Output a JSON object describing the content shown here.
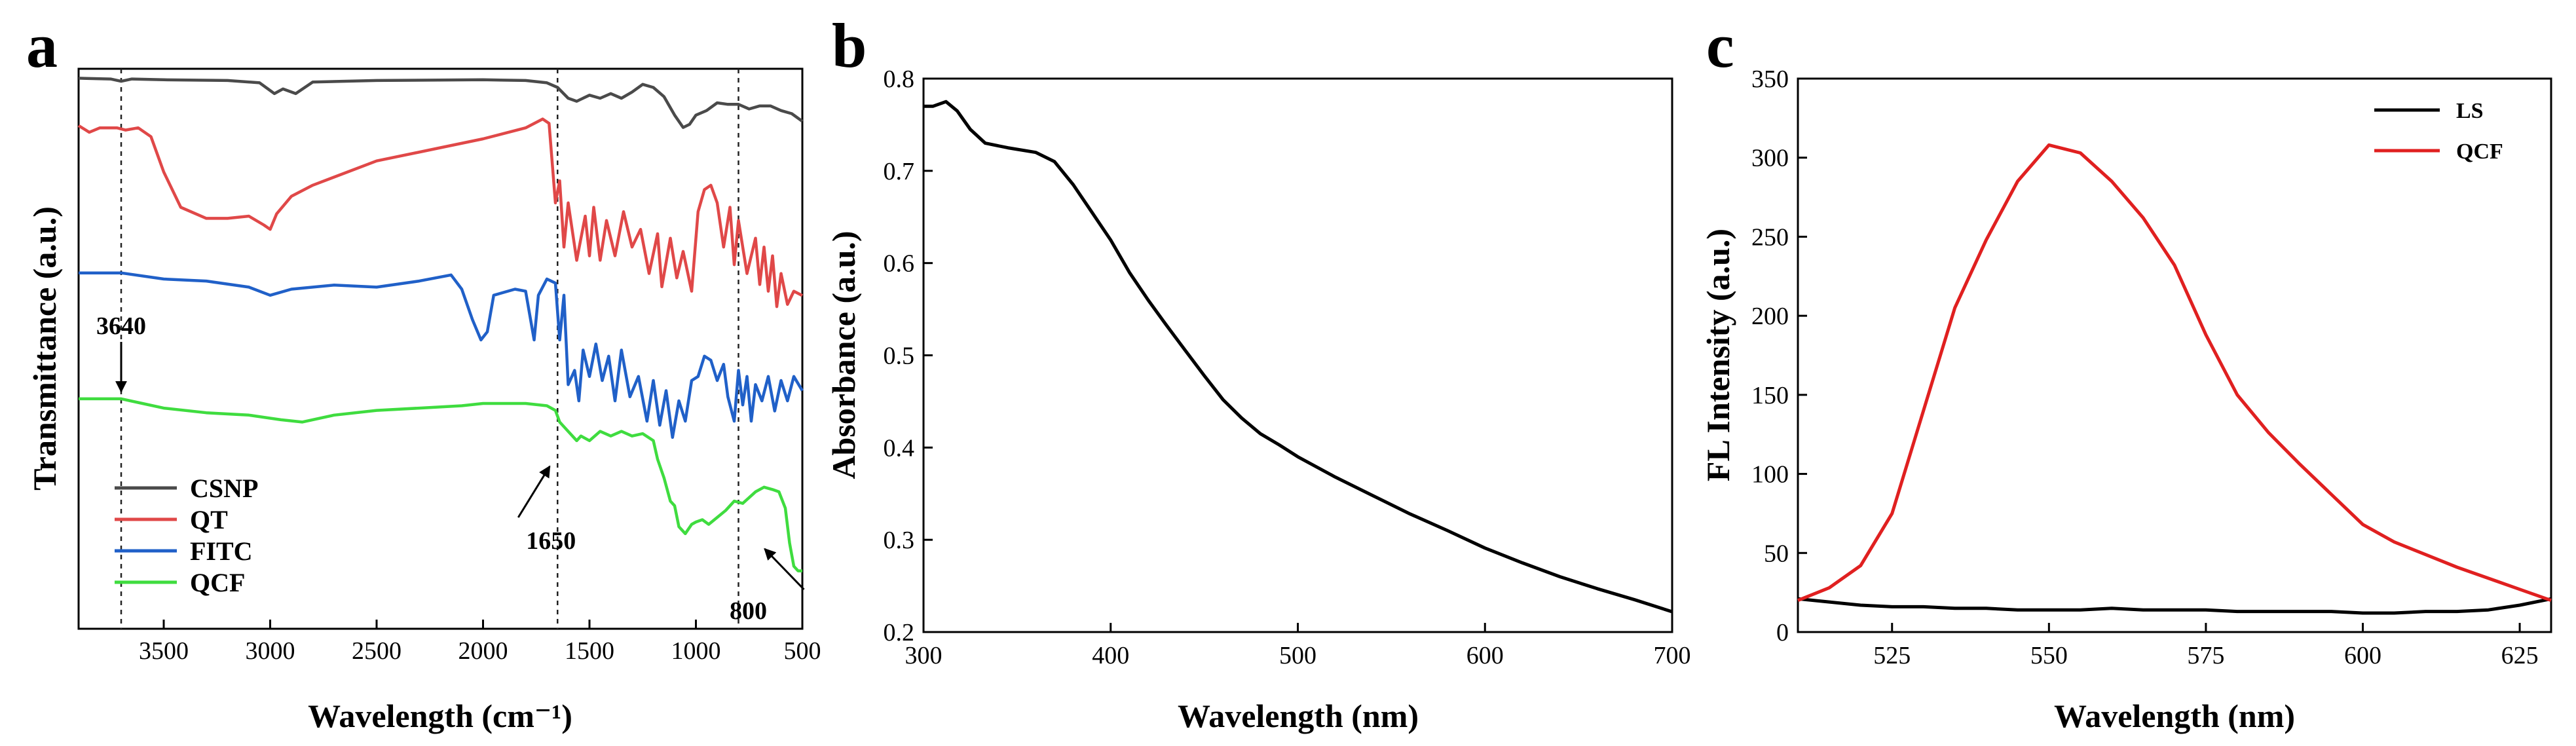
{
  "chart_data": [
    {
      "panel": "a",
      "type": "line",
      "xlabel": "Wavelength (cm⁻¹)",
      "ylabel": "Transmittance (a.u.)",
      "xlim": [
        3900,
        500
      ],
      "x_ticks": [
        3500,
        3000,
        2500,
        2000,
        1500,
        1000,
        500
      ],
      "y_ticks": [],
      "series": [
        {
          "name": "CSNP",
          "color": "#4a4a4a",
          "points": [
            [
              3900,
              0.96
            ],
            [
              3750,
              0.955
            ],
            [
              3700,
              0.94
            ],
            [
              3650,
              0.955
            ],
            [
              3500,
              0.95
            ],
            [
              3200,
              0.945
            ],
            [
              3050,
              0.93
            ],
            [
              2980,
              0.86
            ],
            [
              2940,
              0.89
            ],
            [
              2880,
              0.86
            ],
            [
              2800,
              0.935
            ],
            [
              2500,
              0.945
            ],
            [
              2000,
              0.95
            ],
            [
              1800,
              0.945
            ],
            [
              1700,
              0.93
            ],
            [
              1650,
              0.9
            ],
            [
              1600,
              0.83
            ],
            [
              1560,
              0.81
            ],
            [
              1500,
              0.85
            ],
            [
              1450,
              0.83
            ],
            [
              1400,
              0.86
            ],
            [
              1350,
              0.83
            ],
            [
              1300,
              0.87
            ],
            [
              1250,
              0.92
            ],
            [
              1200,
              0.9
            ],
            [
              1150,
              0.84
            ],
            [
              1100,
              0.72
            ],
            [
              1060,
              0.64
            ],
            [
              1030,
              0.66
            ],
            [
              1000,
              0.72
            ],
            [
              950,
              0.75
            ],
            [
              900,
              0.8
            ],
            [
              850,
              0.79
            ],
            [
              800,
              0.79
            ],
            [
              750,
              0.76
            ],
            [
              700,
              0.78
            ],
            [
              650,
              0.78
            ],
            [
              600,
              0.75
            ],
            [
              550,
              0.73
            ],
            [
              500,
              0.68
            ]
          ]
        },
        {
          "name": "QT",
          "color": "#e04848",
          "points": [
            [
              3900,
              0.87
            ],
            [
              3850,
              0.84
            ],
            [
              3800,
              0.86
            ],
            [
              3720,
              0.86
            ],
            [
              3680,
              0.85
            ],
            [
              3620,
              0.86
            ],
            [
              3560,
              0.82
            ],
            [
              3500,
              0.66
            ],
            [
              3420,
              0.5
            ],
            [
              3300,
              0.45
            ],
            [
              3200,
              0.45
            ],
            [
              3100,
              0.46
            ],
            [
              3030,
              0.42
            ],
            [
              3000,
              0.4
            ],
            [
              2970,
              0.47
            ],
            [
              2900,
              0.55
            ],
            [
              2800,
              0.6
            ],
            [
              2500,
              0.71
            ],
            [
              2200,
              0.77
            ],
            [
              2000,
              0.81
            ],
            [
              1800,
              0.86
            ],
            [
              1720,
              0.9
            ],
            [
              1690,
              0.88
            ],
            [
              1660,
              0.52
            ],
            [
              1640,
              0.62
            ],
            [
              1620,
              0.32
            ],
            [
              1600,
              0.52
            ],
            [
              1560,
              0.26
            ],
            [
              1520,
              0.46
            ],
            [
              1500,
              0.28
            ],
            [
              1480,
              0.5
            ],
            [
              1450,
              0.26
            ],
            [
              1420,
              0.44
            ],
            [
              1380,
              0.28
            ],
            [
              1340,
              0.48
            ],
            [
              1300,
              0.32
            ],
            [
              1260,
              0.4
            ],
            [
              1220,
              0.2
            ],
            [
              1180,
              0.38
            ],
            [
              1160,
              0.14
            ],
            [
              1120,
              0.36
            ],
            [
              1090,
              0.18
            ],
            [
              1060,
              0.3
            ],
            [
              1020,
              0.12
            ],
            [
              990,
              0.48
            ],
            [
              960,
              0.58
            ],
            [
              930,
              0.6
            ],
            [
              900,
              0.52
            ],
            [
              870,
              0.32
            ],
            [
              840,
              0.5
            ],
            [
              820,
              0.24
            ],
            [
              800,
              0.44
            ],
            [
              780,
              0.32
            ],
            [
              760,
              0.2
            ],
            [
              720,
              0.36
            ],
            [
              700,
              0.15
            ],
            [
              680,
              0.32
            ],
            [
              660,
              0.12
            ],
            [
              640,
              0.28
            ],
            [
              620,
              0.05
            ],
            [
              600,
              0.2
            ],
            [
              570,
              0.06
            ],
            [
              540,
              0.12
            ],
            [
              500,
              0.1
            ]
          ]
        },
        {
          "name": "FITC",
          "color": "#2060c8",
          "points": [
            [
              3900,
              0.93
            ],
            [
              3700,
              0.93
            ],
            [
              3500,
              0.9
            ],
            [
              3300,
              0.89
            ],
            [
              3100,
              0.86
            ],
            [
              3000,
              0.82
            ],
            [
              2900,
              0.85
            ],
            [
              2700,
              0.87
            ],
            [
              2500,
              0.86
            ],
            [
              2300,
              0.89
            ],
            [
              2150,
              0.92
            ],
            [
              2100,
              0.85
            ],
            [
              2050,
              0.7
            ],
            [
              2010,
              0.6
            ],
            [
              1980,
              0.64
            ],
            [
              1950,
              0.82
            ],
            [
              1850,
              0.85
            ],
            [
              1800,
              0.84
            ],
            [
              1760,
              0.6
            ],
            [
              1740,
              0.82
            ],
            [
              1700,
              0.9
            ],
            [
              1660,
              0.88
            ],
            [
              1640,
              0.6
            ],
            [
              1620,
              0.82
            ],
            [
              1600,
              0.38
            ],
            [
              1570,
              0.45
            ],
            [
              1550,
              0.3
            ],
            [
              1530,
              0.55
            ],
            [
              1500,
              0.42
            ],
            [
              1470,
              0.58
            ],
            [
              1440,
              0.4
            ],
            [
              1410,
              0.52
            ],
            [
              1380,
              0.3
            ],
            [
              1350,
              0.55
            ],
            [
              1310,
              0.32
            ],
            [
              1270,
              0.42
            ],
            [
              1230,
              0.2
            ],
            [
              1200,
              0.4
            ],
            [
              1170,
              0.18
            ],
            [
              1140,
              0.35
            ],
            [
              1110,
              0.12
            ],
            [
              1080,
              0.3
            ],
            [
              1050,
              0.2
            ],
            [
              1020,
              0.4
            ],
            [
              990,
              0.42
            ],
            [
              960,
              0.52
            ],
            [
              930,
              0.5
            ],
            [
              900,
              0.4
            ],
            [
              870,
              0.48
            ],
            [
              850,
              0.32
            ],
            [
              820,
              0.2
            ],
            [
              800,
              0.45
            ],
            [
              780,
              0.28
            ],
            [
              760,
              0.42
            ],
            [
              740,
              0.2
            ],
            [
              720,
              0.38
            ],
            [
              690,
              0.3
            ],
            [
              660,
              0.42
            ],
            [
              630,
              0.25
            ],
            [
              600,
              0.4
            ],
            [
              570,
              0.3
            ],
            [
              540,
              0.42
            ],
            [
              500,
              0.35
            ]
          ]
        },
        {
          "name": "QCF",
          "color": "#3fdc3f",
          "points": [
            [
              3900,
              0.82
            ],
            [
              3700,
              0.82
            ],
            [
              3600,
              0.8
            ],
            [
              3500,
              0.78
            ],
            [
              3300,
              0.76
            ],
            [
              3100,
              0.75
            ],
            [
              2950,
              0.73
            ],
            [
              2850,
              0.72
            ],
            [
              2700,
              0.75
            ],
            [
              2500,
              0.77
            ],
            [
              2300,
              0.78
            ],
            [
              2100,
              0.79
            ],
            [
              2000,
              0.8
            ],
            [
              1800,
              0.8
            ],
            [
              1700,
              0.79
            ],
            [
              1660,
              0.77
            ],
            [
              1640,
              0.72
            ],
            [
              1600,
              0.68
            ],
            [
              1560,
              0.64
            ],
            [
              1540,
              0.66
            ],
            [
              1500,
              0.64
            ],
            [
              1450,
              0.68
            ],
            [
              1400,
              0.66
            ],
            [
              1350,
              0.68
            ],
            [
              1300,
              0.66
            ],
            [
              1250,
              0.67
            ],
            [
              1200,
              0.64
            ],
            [
              1180,
              0.56
            ],
            [
              1150,
              0.48
            ],
            [
              1120,
              0.38
            ],
            [
              1100,
              0.36
            ],
            [
              1080,
              0.27
            ],
            [
              1050,
              0.24
            ],
            [
              1020,
              0.28
            ],
            [
              1000,
              0.29
            ],
            [
              970,
              0.3
            ],
            [
              940,
              0.28
            ],
            [
              900,
              0.31
            ],
            [
              860,
              0.34
            ],
            [
              820,
              0.38
            ],
            [
              780,
              0.37
            ],
            [
              720,
              0.42
            ],
            [
              680,
              0.44
            ],
            [
              640,
              0.43
            ],
            [
              610,
              0.42
            ],
            [
              580,
              0.35
            ],
            [
              560,
              0.2
            ],
            [
              540,
              0.1
            ],
            [
              520,
              0.08
            ],
            [
              500,
              0.08
            ]
          ]
        }
      ],
      "annotations": [
        {
          "text": "3640",
          "x": 3700
        },
        {
          "text": "1650",
          "x": 1650
        },
        {
          "text": "800",
          "x": 800
        }
      ],
      "legend_position": "bottom-left",
      "grid": false
    },
    {
      "panel": "b",
      "type": "line",
      "xlabel": "Wavelength (nm)",
      "ylabel": "Absorbance (a.u.)",
      "xlim": [
        300,
        700
      ],
      "ylim": [
        0.2,
        0.8
      ],
      "x_ticks": [
        300,
        400,
        500,
        600,
        700
      ],
      "y_ticks": [
        0.2,
        0.3,
        0.4,
        0.5,
        0.6,
        0.7,
        0.8
      ],
      "series": [
        {
          "color": "#000000",
          "x": [
            300,
            305,
            312,
            318,
            325,
            333,
            345,
            360,
            370,
            380,
            390,
            400,
            410,
            420,
            430,
            440,
            450,
            460,
            470,
            480,
            490,
            500,
            520,
            540,
            560,
            580,
            600,
            620,
            640,
            660,
            680,
            700
          ],
          "y": [
            0.77,
            0.77,
            0.775,
            0.765,
            0.745,
            0.73,
            0.725,
            0.72,
            0.71,
            0.685,
            0.655,
            0.625,
            0.59,
            0.56,
            0.532,
            0.505,
            0.478,
            0.452,
            0.432,
            0.415,
            0.403,
            0.39,
            0.368,
            0.348,
            0.328,
            0.31,
            0.291,
            0.275,
            0.26,
            0.247,
            0.235,
            0.222
          ]
        }
      ],
      "grid": false
    },
    {
      "panel": "c",
      "type": "line",
      "xlabel": "Wavelength (nm)",
      "ylabel": "FL Intensity (a.u.)",
      "xlim": [
        510,
        630
      ],
      "ylim": [
        0,
        350
      ],
      "x_ticks": [
        525,
        550,
        575,
        600,
        625
      ],
      "y_ticks": [
        0,
        50,
        100,
        150,
        200,
        250,
        300,
        350
      ],
      "series": [
        {
          "name": "LS",
          "color": "#000000",
          "x": [
            510,
            515,
            520,
            525,
            530,
            535,
            540,
            545,
            550,
            555,
            560,
            565,
            570,
            575,
            580,
            585,
            590,
            595,
            600,
            605,
            610,
            615,
            620,
            625,
            630
          ],
          "y": [
            21,
            19,
            17,
            16,
            16,
            15,
            15,
            14,
            14,
            14,
            15,
            14,
            14,
            14,
            13,
            13,
            13,
            13,
            12,
            12,
            13,
            13,
            14,
            17,
            21
          ]
        },
        {
          "name": "QCF",
          "color": "#e02020",
          "x": [
            510,
            515,
            520,
            525,
            530,
            535,
            540,
            545,
            550,
            555,
            560,
            565,
            570,
            575,
            580,
            585,
            590,
            595,
            600,
            605,
            610,
            615,
            620,
            625,
            630
          ],
          "y": [
            20,
            28,
            42,
            75,
            140,
            205,
            248,
            285,
            308,
            303,
            285,
            262,
            232,
            188,
            150,
            126,
            106,
            87,
            68,
            57,
            49,
            41,
            34,
            27,
            20
          ]
        }
      ],
      "legend_position": "top-right",
      "grid": false
    }
  ]
}
